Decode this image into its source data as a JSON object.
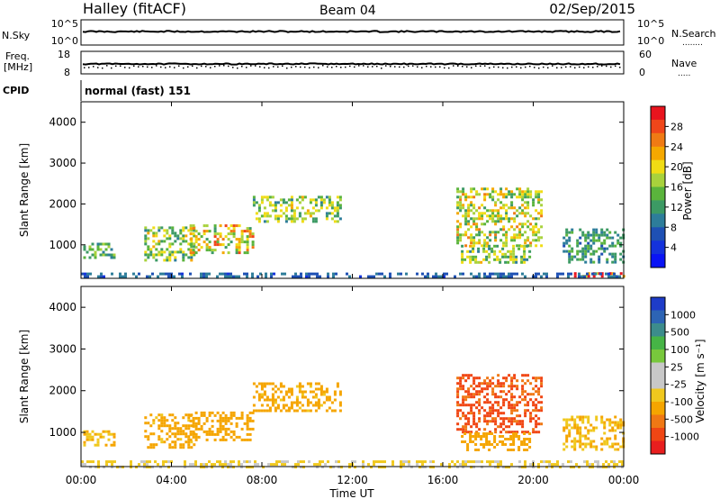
{
  "header": {
    "station": "Halley (fitACF)",
    "beam": "Beam 04",
    "date": "02/Sep/2015"
  },
  "panels": {
    "sky": {
      "left_label": "N.Sky",
      "left_ticks": [
        "10^5",
        "10^0"
      ],
      "right_ticks": [
        "10^5",
        "10^0"
      ],
      "right_label": "N.Search",
      "right_dots": "........"
    },
    "freq": {
      "left_label_top": "Freq.",
      "left_label_unit": "[MHz]",
      "left_ticks": [
        "18",
        "8"
      ],
      "right_ticks": [
        "60",
        "0"
      ],
      "right_label": "Nave",
      "right_dots": "....."
    },
    "cpid": {
      "label": "CPID",
      "value": "normal (fast) 151"
    }
  },
  "colorbars": {
    "power": {
      "title": "Power [dB]",
      "labels": [
        "28",
        "24",
        "20",
        "16",
        "12",
        "8",
        "4"
      ],
      "colors": [
        "#e8141e",
        "#f0461a",
        "#f07a14",
        "#f5a800",
        "#f0dc14",
        "#a8d23c",
        "#5ab43c",
        "#3c9a64",
        "#2d7d9a",
        "#1e50b4",
        "#1432dc",
        "#0a14f5"
      ]
    },
    "velocity": {
      "title": "Velocity [m s⁻¹]",
      "labels": [
        "1000",
        "500",
        "100",
        "25",
        "-25",
        "-100",
        "-500",
        "-1000"
      ],
      "colors": [
        "#1e3cc8",
        "#2d64b4",
        "#3c8c8c",
        "#46b446",
        "#78c83c",
        "#c8c8c8",
        "#c8c8c8",
        "#f0c81e",
        "#f5a500",
        "#f07814",
        "#f04614",
        "#e81e1e"
      ]
    }
  },
  "chart_data": [
    {
      "type": "heatmap",
      "ylabel": "Slant Range [km]",
      "yticks": [
        "4000",
        "3000",
        "2000",
        "1000"
      ],
      "ylim": [
        180,
        4500
      ],
      "xlim": [
        0,
        24
      ],
      "bands": [
        {
          "from": 0.1,
          "to": 1.5,
          "lo": 700,
          "hi": 1050,
          "value": 12
        },
        {
          "from": 2.8,
          "to": 5.0,
          "lo": 650,
          "hi": 1450,
          "value": 14
        },
        {
          "from": 4.8,
          "to": 7.6,
          "lo": 800,
          "hi": 1500,
          "value": 18
        },
        {
          "from": 7.6,
          "to": 11.5,
          "lo": 1550,
          "hi": 2200,
          "value": 14
        },
        {
          "from": 16.6,
          "to": 20.4,
          "lo": 1000,
          "hi": 2400,
          "value": 16
        },
        {
          "from": 16.8,
          "to": 19.8,
          "lo": 550,
          "hi": 1000,
          "value": 14
        },
        {
          "from": 21.3,
          "to": 24.0,
          "lo": 600,
          "hi": 1400,
          "value": 10
        },
        {
          "from": 21.8,
          "to": 24.0,
          "lo": 200,
          "hi": 330,
          "value": 26
        },
        {
          "from": 0.0,
          "to": 24.0,
          "lo": 200,
          "hi": 320,
          "value": 6
        }
      ]
    },
    {
      "type": "heatmap",
      "ylabel": "Slant Range [km]",
      "yticks": [
        "4000",
        "3000",
        "2000",
        "1000"
      ],
      "ylim": [
        180,
        4500
      ],
      "xlim": [
        0,
        24
      ],
      "bands": [
        {
          "from": 0.1,
          "to": 1.5,
          "lo": 700,
          "hi": 1050,
          "value": -100
        },
        {
          "from": 2.8,
          "to": 5.0,
          "lo": 650,
          "hi": 1450,
          "value": -150
        },
        {
          "from": 4.8,
          "to": 7.6,
          "lo": 800,
          "hi": 1500,
          "value": -200
        },
        {
          "from": 7.6,
          "to": 11.5,
          "lo": 1550,
          "hi": 2200,
          "value": -150
        },
        {
          "from": 16.6,
          "to": 20.4,
          "lo": 1000,
          "hi": 2400,
          "value": -600
        },
        {
          "from": 16.8,
          "to": 19.8,
          "lo": 550,
          "hi": 1000,
          "value": -200
        },
        {
          "from": 21.3,
          "to": 24.0,
          "lo": 600,
          "hi": 1400,
          "value": -100
        },
        {
          "from": 0.0,
          "to": 24.0,
          "lo": 200,
          "hi": 330,
          "value": -30
        }
      ]
    }
  ],
  "xaxis": {
    "title": "Time UT",
    "ticks": [
      "00:00",
      "04:00",
      "08:00",
      "12:00",
      "16:00",
      "20:00",
      "00:00"
    ]
  }
}
